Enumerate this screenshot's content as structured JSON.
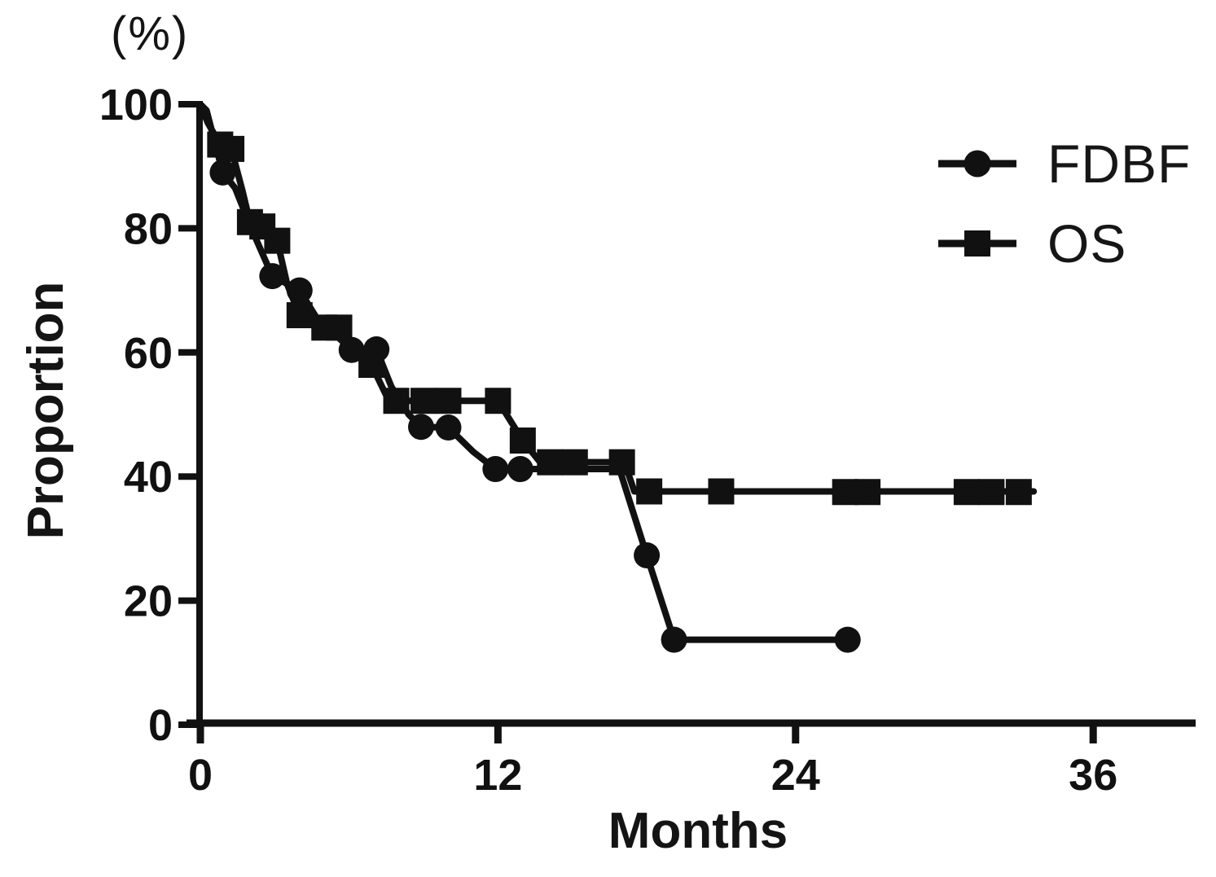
{
  "colors": {
    "ink": "#111111",
    "background": "#ffffff"
  },
  "axis": {
    "y_unit_label": "(%)",
    "y_title": "Proportion",
    "x_title": "Months"
  },
  "chart_data": {
    "type": "line",
    "subtype": "kaplan-meier-survival",
    "title": "",
    "xlabel": "Months",
    "ylabel": "Proportion",
    "y_unit": "(%)",
    "xlim": [
      0,
      40
    ],
    "ylim": [
      0,
      100
    ],
    "x_ticks": [
      0,
      12,
      24,
      36
    ],
    "y_ticks": [
      0,
      20,
      40,
      60,
      80,
      100
    ],
    "grid": false,
    "legend_position": "upper right",
    "series": [
      {
        "name": "OS",
        "marker": "square",
        "line": [
          [
            0,
            100
          ],
          [
            0.3,
            97
          ],
          [
            0.8,
            93.5
          ],
          [
            1.25,
            92.8
          ],
          [
            1.7,
            86
          ],
          [
            2.0,
            81
          ],
          [
            2.5,
            80.3
          ],
          [
            3.1,
            78
          ],
          [
            3.5,
            71
          ],
          [
            4.0,
            66
          ],
          [
            5.0,
            64
          ],
          [
            5.6,
            64
          ],
          [
            6.9,
            58
          ],
          [
            7.6,
            52.2
          ],
          [
            12.0,
            52.2
          ],
          [
            13.0,
            45.8
          ],
          [
            13.7,
            42.3
          ],
          [
            17.1,
            42.3
          ],
          [
            17.5,
            37.6
          ],
          [
            33.6,
            37.6
          ]
        ],
        "markers": [
          [
            0.8,
            93.5
          ],
          [
            1.25,
            92.8
          ],
          [
            2.0,
            81
          ],
          [
            2.5,
            80.3
          ],
          [
            3.1,
            78
          ],
          [
            4.0,
            66
          ],
          [
            5.0,
            64
          ],
          [
            5.6,
            64
          ],
          [
            6.9,
            58
          ],
          [
            7.9,
            52.2
          ],
          [
            9.0,
            52.2
          ],
          [
            10.0,
            52.2
          ],
          [
            12.0,
            52.2
          ],
          [
            13.0,
            45.8
          ],
          [
            14.1,
            42.3
          ],
          [
            15.1,
            42.3
          ],
          [
            17.0,
            42.3
          ],
          [
            18.1,
            37.6
          ],
          [
            21.0,
            37.6
          ],
          [
            26.0,
            37.5
          ],
          [
            26.9,
            37.5
          ],
          [
            30.9,
            37.5
          ],
          [
            31.9,
            37.5
          ],
          [
            33.0,
            37.5
          ]
        ]
      },
      {
        "name": "FDBF",
        "marker": "circle",
        "line": [
          [
            0,
            100
          ],
          [
            0.25,
            99
          ],
          [
            0.9,
            89
          ],
          [
            1.4,
            86.5
          ],
          [
            2.0,
            80.5
          ],
          [
            2.9,
            72.3
          ],
          [
            4.0,
            70
          ],
          [
            4.7,
            65.5
          ],
          [
            5.4,
            63
          ],
          [
            6.1,
            60.4
          ],
          [
            7.1,
            60.5
          ],
          [
            7.7,
            54.5
          ],
          [
            8.4,
            50
          ],
          [
            8.9,
            48
          ],
          [
            10.0,
            47.9
          ],
          [
            11.0,
            44
          ],
          [
            11.9,
            41.2
          ],
          [
            12.9,
            41.2
          ],
          [
            16.9,
            41.2
          ],
          [
            18.0,
            27.3
          ],
          [
            19.1,
            13.7
          ],
          [
            26.1,
            13.7
          ]
        ],
        "markers": [
          [
            0.9,
            89
          ],
          [
            2.9,
            72.3
          ],
          [
            4.0,
            70
          ],
          [
            6.1,
            60.4
          ],
          [
            7.1,
            60.5
          ],
          [
            8.9,
            48
          ],
          [
            10.0,
            47.9
          ],
          [
            11.9,
            41.2
          ],
          [
            12.9,
            41.2
          ],
          [
            18.0,
            27.3
          ],
          [
            19.1,
            13.7
          ],
          [
            26.1,
            13.7
          ]
        ]
      }
    ]
  }
}
